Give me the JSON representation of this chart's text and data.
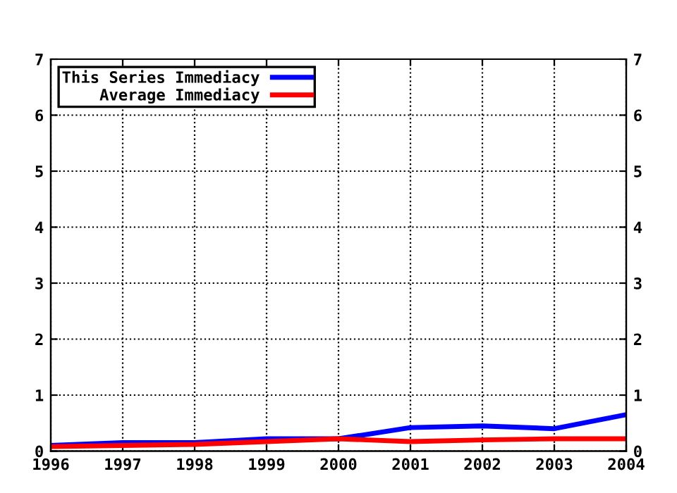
{
  "chart_data": {
    "type": "line",
    "x": [
      1996,
      1997,
      1998,
      1999,
      2000,
      2001,
      2002,
      2003,
      2004
    ],
    "series": [
      {
        "name": "This Series Immediacy",
        "color": "#0000ff",
        "values": [
          0.1,
          0.15,
          0.15,
          0.22,
          0.22,
          0.42,
          0.45,
          0.4,
          0.65
        ]
      },
      {
        "name": "Average Immediacy",
        "color": "#ff0000",
        "values": [
          0.08,
          0.1,
          0.12,
          0.17,
          0.22,
          0.17,
          0.2,
          0.22,
          0.22
        ]
      }
    ],
    "xlim": [
      1996,
      2004
    ],
    "xticks": [
      1996,
      1997,
      1998,
      1999,
      2000,
      2001,
      2002,
      2003,
      2004
    ],
    "ylim": [
      0,
      7
    ],
    "yticks": [
      0,
      1,
      2,
      3,
      4,
      5,
      6,
      7
    ],
    "y2lim": [
      0,
      7
    ],
    "y2ticks": [
      0,
      1,
      2,
      3,
      4,
      5,
      6,
      7
    ],
    "grid": true,
    "legend": "top left",
    "marker": "none",
    "line_style": "solid"
  }
}
